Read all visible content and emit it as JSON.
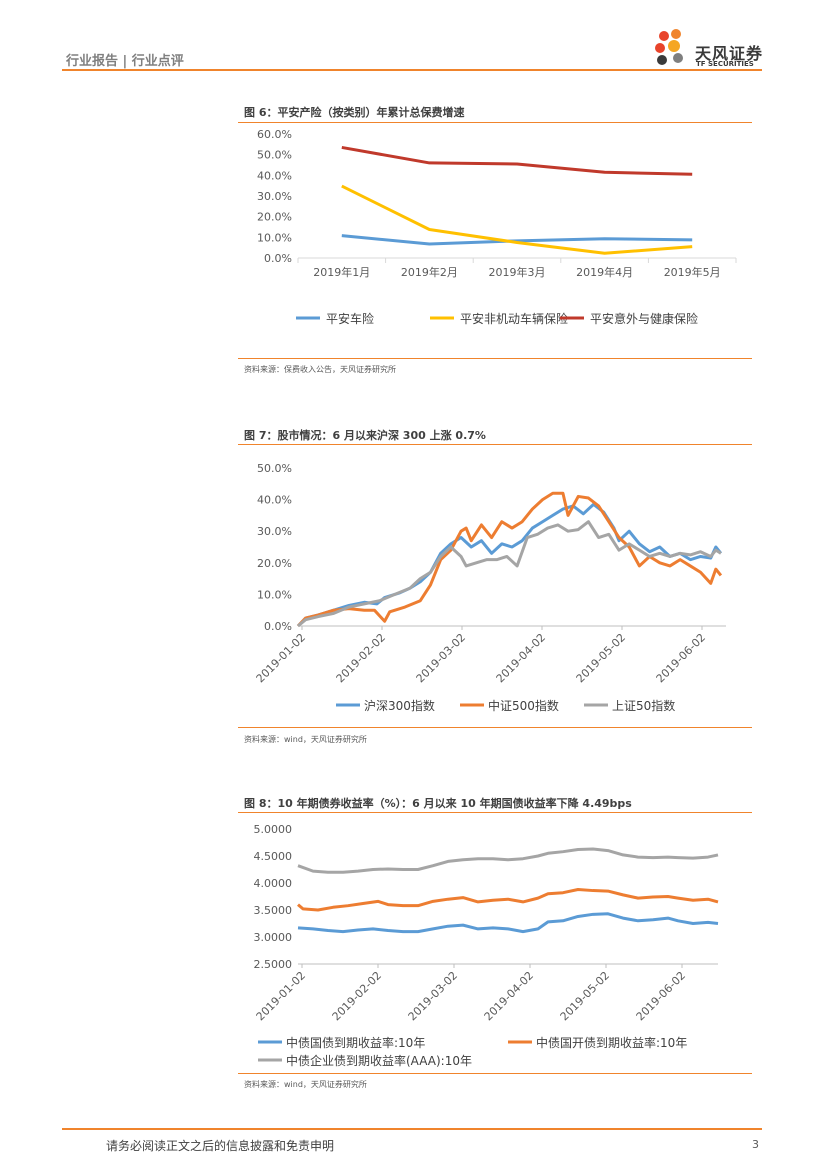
{
  "header": {
    "category": "行业报告 | 行业点评",
    "brand_name": "天风证券",
    "brand_sub": "TF SECURITIES",
    "accent_color": "#f0842c"
  },
  "figure6": {
    "title": "图 6：平安产险（按类别）年累计总保费增速",
    "source": "资料来源：保费收入公告，天风证券研究所",
    "chart_data": {
      "type": "line",
      "title": "平安产险（按类别）年累计总保费增速",
      "categories": [
        "2019年1月",
        "2019年2月",
        "2019年3月",
        "2019年4月",
        "2019年5月"
      ],
      "ylim": [
        0,
        60
      ],
      "yticks": [
        "0.0%",
        "10.0%",
        "20.0%",
        "30.0%",
        "40.0%",
        "50.0%",
        "60.0%"
      ],
      "series": [
        {
          "name": "平安车险",
          "color": "#5b9bd5",
          "values": [
            10.8,
            6.8,
            8.3,
            9.3,
            8.8
          ]
        },
        {
          "name": "平安非机动车辆保险",
          "color": "#ffc000",
          "values": [
            34.8,
            13.8,
            7.5,
            2.3,
            5.5
          ]
        },
        {
          "name": "平安意外与健康保险",
          "color": "#c0392b",
          "values": [
            53.5,
            46.0,
            45.5,
            41.5,
            40.5
          ]
        }
      ]
    }
  },
  "figure7": {
    "title": "图 7：股市情况：6 月以来沪深 300 上涨 0.7%",
    "source": "资料来源：wind，天风证券研究所",
    "chart_data": {
      "type": "line",
      "title": "股市情况：6 月以来沪深 300 上涨 0.7%",
      "x_ticks": [
        "2019-01-02",
        "2019-02-02",
        "2019-03-02",
        "2019-04-02",
        "2019-05-02",
        "2019-06-02"
      ],
      "x_range": [
        0,
        168
      ],
      "ylim": [
        0,
        50
      ],
      "yticks": [
        "0.0%",
        "10.0%",
        "20.0%",
        "30.0%",
        "40.0%",
        "50.0%"
      ],
      "series": [
        {
          "name": "沪深300指数",
          "color": "#5b9bd5",
          "points": [
            [
              0,
              0
            ],
            [
              3,
              2.5
            ],
            [
              8,
              3.5
            ],
            [
              14,
              5
            ],
            [
              20,
              6.5
            ],
            [
              26,
              7.5
            ],
            [
              31,
              7
            ],
            [
              34,
              9
            ],
            [
              40,
              10.5
            ],
            [
              44,
              12
            ],
            [
              48,
              14
            ],
            [
              52,
              17
            ],
            [
              56,
              23
            ],
            [
              60,
              26
            ],
            [
              64,
              28
            ],
            [
              68,
              25
            ],
            [
              72,
              27
            ],
            [
              76,
              23
            ],
            [
              80,
              26
            ],
            [
              84,
              25
            ],
            [
              88,
              27
            ],
            [
              92,
              31
            ],
            [
              96,
              33
            ],
            [
              100,
              35
            ],
            [
              104,
              37
            ],
            [
              108,
              38
            ],
            [
              112,
              35.5
            ],
            [
              116,
              38.5
            ],
            [
              120,
              36
            ],
            [
              124,
              31
            ],
            [
              126,
              27
            ],
            [
              130,
              30
            ],
            [
              134,
              26
            ],
            [
              138,
              23.5
            ],
            [
              142,
              25
            ],
            [
              146,
              22
            ],
            [
              150,
              23
            ],
            [
              154,
              21
            ],
            [
              158,
              22
            ],
            [
              162,
              21.5
            ],
            [
              164,
              25
            ],
            [
              166,
              23
            ]
          ]
        },
        {
          "name": "中证500指数",
          "color": "#ed7d31",
          "points": [
            [
              0,
              0
            ],
            [
              3,
              2.5
            ],
            [
              8,
              3.5
            ],
            [
              14,
              5
            ],
            [
              20,
              5.5
            ],
            [
              26,
              5
            ],
            [
              30,
              5
            ],
            [
              34,
              1.5
            ],
            [
              36,
              4.5
            ],
            [
              42,
              6
            ],
            [
              48,
              8
            ],
            [
              52,
              13
            ],
            [
              56,
              21
            ],
            [
              60,
              24
            ],
            [
              64,
              30
            ],
            [
              66,
              31
            ],
            [
              68,
              27
            ],
            [
              72,
              32
            ],
            [
              76,
              28
            ],
            [
              80,
              33
            ],
            [
              84,
              31
            ],
            [
              88,
              33
            ],
            [
              92,
              37
            ],
            [
              96,
              40
            ],
            [
              100,
              42
            ],
            [
              104,
              42
            ],
            [
              106,
              35
            ],
            [
              110,
              41
            ],
            [
              114,
              40.5
            ],
            [
              118,
              38
            ],
            [
              122,
              33
            ],
            [
              126,
              28
            ],
            [
              130,
              25
            ],
            [
              134,
              19
            ],
            [
              138,
              22
            ],
            [
              142,
              20
            ],
            [
              146,
              19
            ],
            [
              150,
              21
            ],
            [
              154,
              19
            ],
            [
              158,
              17
            ],
            [
              162,
              13.5
            ],
            [
              164,
              18
            ],
            [
              166,
              16
            ]
          ]
        },
        {
          "name": "上证50指数",
          "color": "#a5a5a5",
          "points": [
            [
              0,
              0
            ],
            [
              3,
              2
            ],
            [
              8,
              3
            ],
            [
              14,
              4
            ],
            [
              20,
              6
            ],
            [
              26,
              7
            ],
            [
              32,
              8
            ],
            [
              38,
              10
            ],
            [
              44,
              12
            ],
            [
              48,
              15
            ],
            [
              52,
              17
            ],
            [
              56,
              22
            ],
            [
              60,
              25
            ],
            [
              64,
              22
            ],
            [
              66,
              19
            ],
            [
              70,
              20
            ],
            [
              74,
              21
            ],
            [
              78,
              21
            ],
            [
              82,
              22
            ],
            [
              86,
              19
            ],
            [
              90,
              28
            ],
            [
              94,
              29
            ],
            [
              98,
              31
            ],
            [
              102,
              32
            ],
            [
              106,
              30
            ],
            [
              110,
              30.5
            ],
            [
              114,
              33
            ],
            [
              118,
              28
            ],
            [
              122,
              29
            ],
            [
              126,
              24
            ],
            [
              130,
              26
            ],
            [
              134,
              24
            ],
            [
              138,
              22
            ],
            [
              142,
              23
            ],
            [
              146,
              22
            ],
            [
              150,
              23
            ],
            [
              154,
              22.5
            ],
            [
              158,
              23.5
            ],
            [
              162,
              22
            ],
            [
              164,
              24
            ],
            [
              166,
              23
            ]
          ]
        }
      ]
    }
  },
  "figure8": {
    "title": "图 8：10 年期债券收益率（%）：6 月以来 10 年期国债收益率下降 4.49bps",
    "source": "资料来源：wind，天风证券研究所",
    "chart_data": {
      "type": "line",
      "title": "10 年期债券收益率（%）：6 月以来 10 年期国债收益率下降 4.49bps",
      "x_ticks": [
        "2019-01-02",
        "2019-02-02",
        "2019-03-02",
        "2019-04-02",
        "2019-05-02",
        "2019-06-02"
      ],
      "x_range": [
        0,
        168
      ],
      "ylim": [
        2.5,
        5.0
      ],
      "yticks": [
        "2.5000",
        "3.0000",
        "3.5000",
        "4.0000",
        "4.5000",
        "5.0000"
      ],
      "series": [
        {
          "name": "中债国债到期收益率:10年",
          "color": "#5b9bd5",
          "points": [
            [
              0,
              3.17
            ],
            [
              6,
              3.15
            ],
            [
              12,
              3.12
            ],
            [
              18,
              3.1
            ],
            [
              24,
              3.13
            ],
            [
              30,
              3.15
            ],
            [
              36,
              3.12
            ],
            [
              42,
              3.1
            ],
            [
              48,
              3.1
            ],
            [
              54,
              3.15
            ],
            [
              60,
              3.2
            ],
            [
              66,
              3.22
            ],
            [
              72,
              3.15
            ],
            [
              78,
              3.17
            ],
            [
              84,
              3.15
            ],
            [
              90,
              3.1
            ],
            [
              96,
              3.15
            ],
            [
              100,
              3.28
            ],
            [
              106,
              3.3
            ],
            [
              112,
              3.38
            ],
            [
              118,
              3.42
            ],
            [
              124,
              3.43
            ],
            [
              130,
              3.35
            ],
            [
              136,
              3.3
            ],
            [
              142,
              3.32
            ],
            [
              148,
              3.35
            ],
            [
              152,
              3.3
            ],
            [
              158,
              3.25
            ],
            [
              164,
              3.27
            ],
            [
              168,
              3.25
            ]
          ]
        },
        {
          "name": "中债国开债到期收益率:10年",
          "color": "#ed7d31",
          "points": [
            [
              0,
              3.6
            ],
            [
              2,
              3.52
            ],
            [
              8,
              3.5
            ],
            [
              14,
              3.55
            ],
            [
              20,
              3.58
            ],
            [
              26,
              3.62
            ],
            [
              32,
              3.66
            ],
            [
              36,
              3.6
            ],
            [
              42,
              3.58
            ],
            [
              48,
              3.58
            ],
            [
              54,
              3.66
            ],
            [
              60,
              3.7
            ],
            [
              66,
              3.73
            ],
            [
              72,
              3.65
            ],
            [
              78,
              3.68
            ],
            [
              84,
              3.7
            ],
            [
              90,
              3.65
            ],
            [
              96,
              3.72
            ],
            [
              100,
              3.8
            ],
            [
              106,
              3.82
            ],
            [
              112,
              3.88
            ],
            [
              118,
              3.86
            ],
            [
              124,
              3.85
            ],
            [
              130,
              3.78
            ],
            [
              136,
              3.72
            ],
            [
              142,
              3.74
            ],
            [
              148,
              3.75
            ],
            [
              152,
              3.72
            ],
            [
              158,
              3.68
            ],
            [
              164,
              3.7
            ],
            [
              168,
              3.65
            ]
          ]
        },
        {
          "name": "中债企业债到期收益率(AAA):10年",
          "color": "#a5a5a5",
          "points": [
            [
              0,
              4.32
            ],
            [
              6,
              4.22
            ],
            [
              12,
              4.2
            ],
            [
              18,
              4.2
            ],
            [
              24,
              4.22
            ],
            [
              30,
              4.25
            ],
            [
              36,
              4.26
            ],
            [
              42,
              4.25
            ],
            [
              48,
              4.25
            ],
            [
              54,
              4.32
            ],
            [
              60,
              4.4
            ],
            [
              66,
              4.43
            ],
            [
              72,
              4.45
            ],
            [
              78,
              4.45
            ],
            [
              84,
              4.43
            ],
            [
              90,
              4.45
            ],
            [
              96,
              4.5
            ],
            [
              100,
              4.55
            ],
            [
              106,
              4.58
            ],
            [
              112,
              4.62
            ],
            [
              118,
              4.63
            ],
            [
              124,
              4.6
            ],
            [
              130,
              4.52
            ],
            [
              136,
              4.48
            ],
            [
              142,
              4.47
            ],
            [
              148,
              4.48
            ],
            [
              152,
              4.47
            ],
            [
              158,
              4.46
            ],
            [
              164,
              4.48
            ],
            [
              168,
              4.52
            ]
          ]
        }
      ]
    }
  },
  "footer": {
    "disclaimer": "请务必阅读正文之后的信息披露和免责申明",
    "page_number": "3"
  }
}
